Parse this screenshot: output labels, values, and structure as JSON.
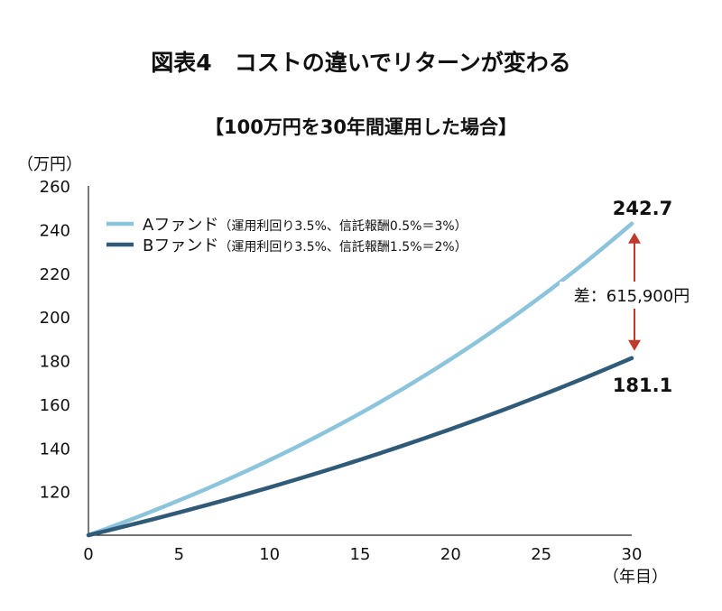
{
  "title": "図表4　コストの違いでリターンが変わる",
  "subtitle": "【100万円を30年間運用した場合】",
  "chart_data": {
    "type": "line",
    "y_unit_label": "（万円）",
    "x_unit_label": "（年目）",
    "xlim": [
      0,
      30
    ],
    "ylim": [
      100,
      260
    ],
    "x_ticks": [
      0,
      5,
      10,
      15,
      20,
      25,
      30
    ],
    "y_ticks": [
      120,
      140,
      160,
      180,
      200,
      220,
      240,
      260
    ],
    "legend_position": "top-left",
    "series": [
      {
        "name": "Aファンド",
        "legend_note": "（運用利回り3.5%、信託報酬0.5%＝3%）",
        "color": "#8cc4dc",
        "rate": 0.03,
        "start": 100,
        "end_label": "242.7"
      },
      {
        "name": "Bファンド",
        "legend_note": "（運用利回り3.5%、信託報酬1.5%＝2%）",
        "color": "#2f5a78",
        "rate": 0.02,
        "start": 100,
        "end_label": "181.1"
      }
    ],
    "annotation": {
      "text": "差：615,900円",
      "color": "#c0392b"
    }
  }
}
